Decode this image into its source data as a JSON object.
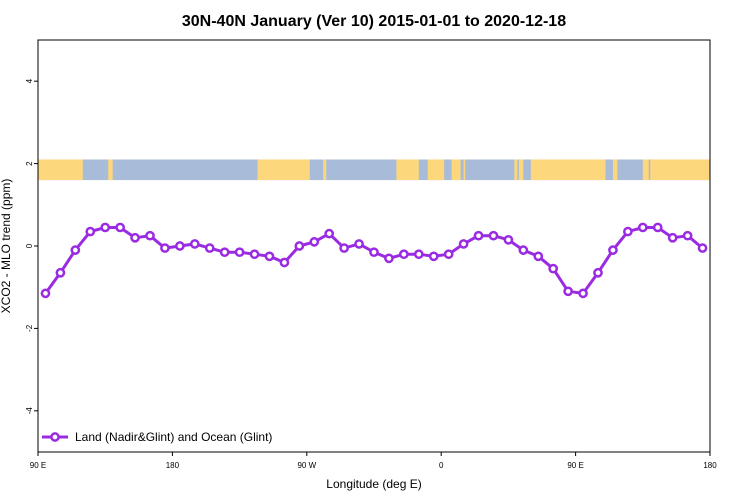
{
  "chart_data": {
    "type": "line",
    "title": "30N-40N January (Ver 10)   2015-01-01 to 2020-12-18",
    "xlabel": "Longitude (deg E)",
    "ylabel": "XCO2 - MLO trend (ppm)",
    "xlim": [
      90,
      540
    ],
    "ylim": [
      -5,
      5
    ],
    "x_ticks": [
      {
        "value": 90,
        "label": "90 E"
      },
      {
        "value": 180,
        "label": "180"
      },
      {
        "value": 270,
        "label": "90 W"
      },
      {
        "value": 360,
        "label": "0"
      },
      {
        "value": 450,
        "label": "90 E"
      },
      {
        "value": 540,
        "label": "180"
      }
    ],
    "y_ticks": [
      {
        "value": -4,
        "label": "-4"
      },
      {
        "value": -2,
        "label": "-2"
      },
      {
        "value": 0,
        "label": "0"
      },
      {
        "value": 2,
        "label": "2"
      },
      {
        "value": 4,
        "label": "4"
      }
    ],
    "land_ocean_strip": {
      "y_range": [
        1.6,
        2.1
      ],
      "ocean_color": "#a8bbd8",
      "land_color": "#fcd77c",
      "land_segments": [
        [
          90,
          120
        ],
        [
          137,
          140
        ],
        [
          237,
          272
        ],
        [
          281,
          283
        ],
        [
          330,
          345
        ],
        [
          351,
          362
        ],
        [
          367,
          373
        ],
        [
          375,
          376
        ],
        [
          409,
          411
        ],
        [
          412,
          415
        ],
        [
          420,
          470
        ],
        [
          475,
          478
        ],
        [
          495,
          499
        ],
        [
          500,
          540
        ]
      ]
    },
    "series": [
      {
        "name": "Land (Nadir&Glint) and Ocean (Glint)",
        "color": "#9a2be2",
        "x": [
          95,
          105,
          115,
          125,
          135,
          145,
          155,
          165,
          175,
          185,
          195,
          205,
          215,
          225,
          235,
          245,
          255,
          265,
          275,
          285,
          295,
          305,
          315,
          325,
          335,
          345,
          355,
          365,
          375,
          385,
          395,
          405,
          415,
          425,
          435,
          445,
          455,
          465,
          475,
          485,
          495,
          505,
          515,
          525,
          535
        ],
        "values": [
          -1.15,
          -0.65,
          -0.1,
          0.35,
          0.45,
          0.45,
          0.2,
          0.25,
          -0.05,
          0.0,
          0.05,
          -0.05,
          -0.15,
          -0.15,
          -0.2,
          -0.25,
          -0.4,
          0.0,
          0.1,
          0.3,
          -0.05,
          0.05,
          -0.15,
          -0.3,
          -0.2,
          -0.2,
          -0.25,
          -0.2,
          0.05,
          0.25,
          0.25,
          0.15,
          -0.1,
          -0.25,
          -0.55,
          -1.1,
          -1.15,
          -0.65,
          -0.1,
          0.35,
          0.45,
          0.45,
          0.2,
          0.25,
          -0.05
        ]
      }
    ],
    "legend_position": "bottom-left"
  }
}
